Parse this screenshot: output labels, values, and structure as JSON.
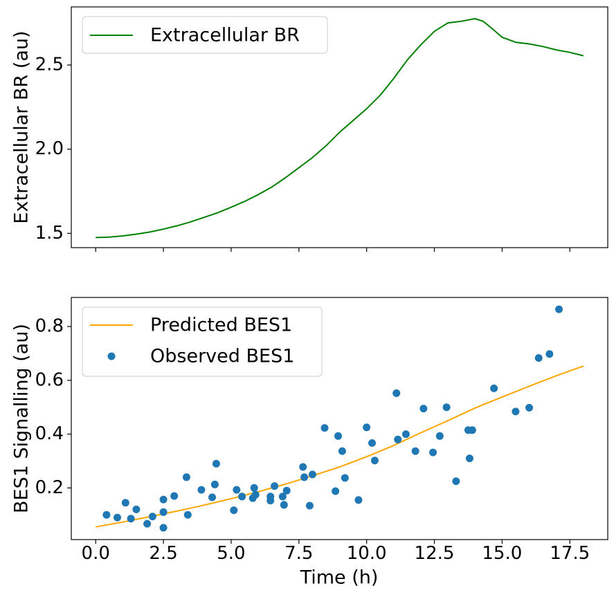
{
  "chart_data": [
    {
      "type": "line",
      "panel": "top",
      "title": "",
      "xlabel": "",
      "ylabel": "Extracellular BR (au)",
      "xlim": [
        -0.9,
        18.9
      ],
      "ylim": [
        1.415,
        2.845
      ],
      "xticks": [
        0.0,
        2.5,
        5.0,
        7.5,
        10.0,
        12.5,
        15.0,
        17.5
      ],
      "xtick_labels_visible": false,
      "yticks": [
        1.5,
        2.0,
        2.5
      ],
      "ytick_labels": [
        "1.5",
        "2.0",
        "2.5"
      ],
      "grid": false,
      "legend_position": "upper-left",
      "series": [
        {
          "name": "Extracellular BR",
          "color": "#008000",
          "x": [
            0.0,
            0.5,
            1.0,
            1.5,
            2.0,
            2.5,
            3.0,
            3.5,
            4.0,
            4.5,
            5.0,
            5.5,
            6.0,
            6.5,
            7.0,
            7.5,
            8.0,
            8.5,
            9.0,
            9.5,
            10.0,
            10.5,
            11.0,
            11.5,
            12.0,
            12.5,
            13.0,
            13.5,
            14.0,
            14.3,
            14.6,
            15.0,
            15.5,
            16.0,
            16.5,
            17.0,
            17.5,
            18.0
          ],
          "y": [
            1.475,
            1.478,
            1.485,
            1.495,
            1.508,
            1.525,
            1.545,
            1.568,
            1.595,
            1.622,
            1.655,
            1.69,
            1.73,
            1.775,
            1.83,
            1.89,
            1.95,
            2.02,
            2.1,
            2.17,
            2.24,
            2.32,
            2.42,
            2.53,
            2.62,
            2.7,
            2.75,
            2.76,
            2.775,
            2.76,
            2.72,
            2.665,
            2.635,
            2.625,
            2.61,
            2.59,
            2.575,
            2.555
          ]
        }
      ]
    },
    {
      "type": "scatter",
      "panel": "bottom",
      "title": "",
      "xlabel": "Time (h)",
      "ylabel": "BES1 Signalling (au)",
      "xlim": [
        -0.9,
        18.9
      ],
      "ylim": [
        0.008,
        0.908
      ],
      "xticks": [
        0.0,
        2.5,
        5.0,
        7.5,
        10.0,
        12.5,
        15.0,
        17.5
      ],
      "xtick_labels": [
        "0.0",
        "2.5",
        "5.0",
        "7.5",
        "10.0",
        "12.5",
        "15.0",
        "17.5"
      ],
      "yticks": [
        0.2,
        0.4,
        0.6,
        0.8
      ],
      "ytick_labels": [
        "0.2",
        "0.4",
        "0.6",
        "0.8"
      ],
      "grid": false,
      "legend_position": "upper-left",
      "series": [
        {
          "name": "Predicted BES1",
          "type": "line",
          "color": "#ffa500",
          "x": [
            0,
            1,
            2,
            3,
            4,
            5,
            6,
            7,
            8,
            9,
            10,
            11,
            12,
            13,
            14,
            15,
            16,
            17,
            18
          ],
          "y": [
            0.055,
            0.073,
            0.093,
            0.114,
            0.136,
            0.16,
            0.186,
            0.214,
            0.245,
            0.278,
            0.316,
            0.358,
            0.405,
            0.45,
            0.497,
            0.538,
            0.578,
            0.617,
            0.653
          ]
        },
        {
          "name": "Observed BES1",
          "type": "scatter",
          "color": "#1f77b4",
          "points": [
            [
              0.4,
              0.1
            ],
            [
              0.8,
              0.09
            ],
            [
              1.1,
              0.145
            ],
            [
              1.3,
              0.086
            ],
            [
              1.5,
              0.12
            ],
            [
              1.9,
              0.067
            ],
            [
              2.1,
              0.094
            ],
            [
              2.5,
              0.157
            ],
            [
              2.5,
              0.11
            ],
            [
              2.5,
              0.052
            ],
            [
              2.9,
              0.17
            ],
            [
              3.35,
              0.24
            ],
            [
              3.4,
              0.1
            ],
            [
              3.9,
              0.193
            ],
            [
              4.3,
              0.165
            ],
            [
              4.4,
              0.213
            ],
            [
              4.45,
              0.29
            ],
            [
              5.1,
              0.117
            ],
            [
              5.2,
              0.193
            ],
            [
              5.4,
              0.168
            ],
            [
              5.8,
              0.162
            ],
            [
              5.85,
              0.2
            ],
            [
              5.9,
              0.175
            ],
            [
              6.45,
              0.168
            ],
            [
              6.45,
              0.153
            ],
            [
              6.6,
              0.207
            ],
            [
              6.9,
              0.168
            ],
            [
              6.95,
              0.137
            ],
            [
              7.05,
              0.19
            ],
            [
              7.65,
              0.278
            ],
            [
              7.7,
              0.24
            ],
            [
              7.9,
              0.134
            ],
            [
              8.0,
              0.25
            ],
            [
              8.45,
              0.423
            ],
            [
              8.85,
              0.188
            ],
            [
              8.95,
              0.393
            ],
            [
              9.1,
              0.337
            ],
            [
              9.2,
              0.237
            ],
            [
              9.7,
              0.155
            ],
            [
              10.0,
              0.425
            ],
            [
              10.2,
              0.367
            ],
            [
              10.3,
              0.302
            ],
            [
              11.1,
              0.552
            ],
            [
              11.15,
              0.38
            ],
            [
              11.45,
              0.4
            ],
            [
              11.8,
              0.337
            ],
            [
              12.1,
              0.495
            ],
            [
              12.45,
              0.332
            ],
            [
              12.7,
              0.393
            ],
            [
              12.95,
              0.5
            ],
            [
              13.3,
              0.225
            ],
            [
              13.75,
              0.415
            ],
            [
              13.8,
              0.31
            ],
            [
              13.9,
              0.415
            ],
            [
              14.7,
              0.57
            ],
            [
              15.5,
              0.484
            ],
            [
              16.0,
              0.498
            ],
            [
              16.35,
              0.683
            ],
            [
              16.75,
              0.698
            ],
            [
              17.1,
              0.864
            ]
          ]
        }
      ]
    }
  ]
}
